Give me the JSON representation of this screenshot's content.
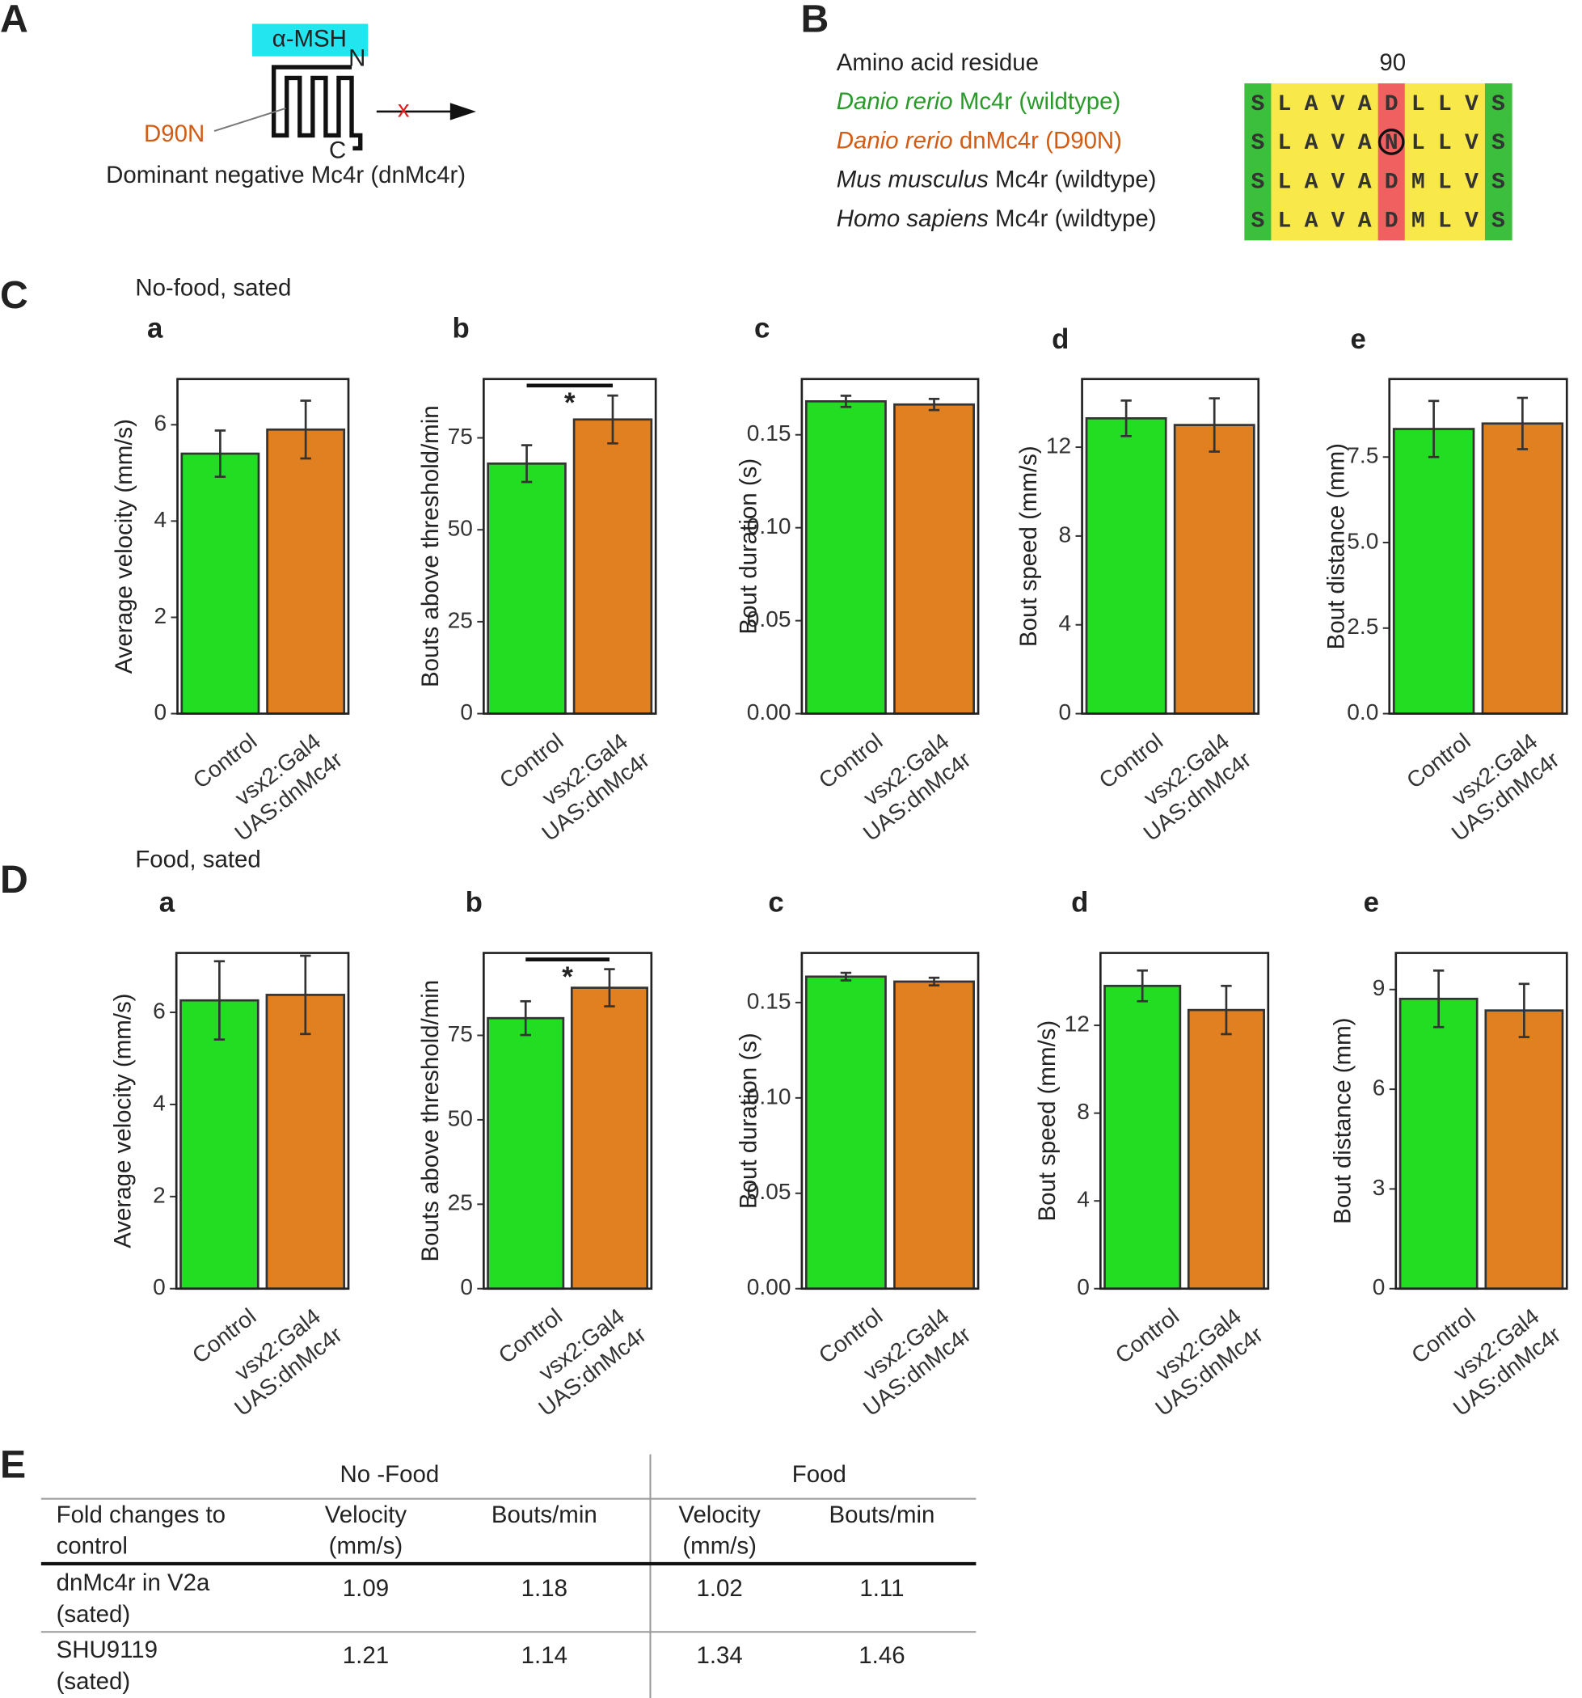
{
  "panel_a": {
    "label": "A",
    "ligand": "α-MSH",
    "n_term": "N",
    "c_term": "C",
    "mutation": "D90N",
    "caption": "Dominant negative Mc4r (dnMc4r)",
    "blocked_mark": "x"
  },
  "panel_b": {
    "label": "B",
    "header": "Amino acid residue",
    "position": "90",
    "rows": [
      {
        "species": "Danio rerio",
        "name": " Mc4r (wildtype)",
        "color": "#2a9a2a",
        "sequence": [
          "S",
          "L",
          "A",
          "V",
          "A",
          "D",
          "L",
          "L",
          "V",
          "S"
        ]
      },
      {
        "species": "Danio rerio",
        "name": " dnMc4r (D90N)",
        "color": "#d25c14",
        "sequence": [
          "S",
          "L",
          "A",
          "V",
          "A",
          "N",
          "L",
          "L",
          "V",
          "S"
        ]
      },
      {
        "species": "Mus musculus",
        "name": " Mc4r (wildtype)",
        "color": "#222222",
        "sequence": [
          "S",
          "L",
          "A",
          "V",
          "A",
          "D",
          "M",
          "L",
          "V",
          "S"
        ]
      },
      {
        "species": "Homo sapiens",
        "name": " Mc4r (wildtype)",
        "color": "#222222",
        "sequence": [
          "S",
          "L",
          "A",
          "V",
          "A",
          "D",
          "M",
          "L",
          "V",
          "S"
        ]
      }
    ]
  },
  "rows": [
    {
      "label": "C",
      "title": "No-food, sated"
    },
    {
      "label": "D",
      "title": "Food, sated"
    }
  ],
  "chart_data": [
    {
      "type": "bar",
      "panel": "a",
      "ylabel": "Average velocity (mm/s)",
      "categories": [
        [
          "Control"
        ],
        [
          "vsx2:Gal4",
          "UAS:dnMc4r"
        ]
      ],
      "values": [
        5.4,
        5.9
      ],
      "errors": [
        0.48,
        0.6
      ],
      "colors": [
        "#22dd22",
        "#e08020"
      ],
      "ylim": [
        0,
        6.95
      ],
      "yticks": [
        0,
        2,
        4,
        6
      ]
    },
    {
      "type": "bar",
      "panel": "b",
      "ylabel": "Bouts above threshold/min",
      "categories": [
        [
          "Control"
        ],
        [
          "vsx2:Gal4",
          "UAS:dnMc4r"
        ]
      ],
      "values": [
        68,
        80
      ],
      "errors": [
        5,
        6.5
      ],
      "colors": [
        "#22dd22",
        "#e08020"
      ],
      "ylim": [
        0,
        91
      ],
      "yticks": [
        0,
        25,
        50,
        75
      ],
      "annotation": "*"
    },
    {
      "type": "bar",
      "panel": "c",
      "ylabel": "Bout duration (s)",
      "categories": [
        [
          "Control"
        ],
        [
          "vsx2:Gal4",
          "UAS:dnMc4r"
        ]
      ],
      "values": [
        0.168,
        0.1663
      ],
      "errors": [
        0.003,
        0.003
      ],
      "colors": [
        "#22dd22",
        "#e08020"
      ],
      "ylim": [
        0,
        0.18
      ],
      "yticks": [
        {
          "value": 0,
          "label": "0.00"
        },
        0.05,
        {
          "value": 0.1,
          "label": "0.10"
        },
        0.15
      ]
    },
    {
      "type": "bar",
      "panel": "d",
      "ylabel": "Bout speed (mm/s)",
      "categories": [
        [
          "Control"
        ],
        [
          "vsx2:Gal4",
          "UAS:dnMc4r"
        ]
      ],
      "values": [
        13.3,
        13.0
      ],
      "errors": [
        0.8,
        1.2
      ],
      "colors": [
        "#22dd22",
        "#e08020"
      ],
      "ylim": [
        0,
        15.07
      ],
      "yticks": [
        0,
        4,
        8,
        12
      ]
    },
    {
      "type": "bar",
      "panel": "e",
      "ylabel": "Bout distance (mm)",
      "categories": [
        [
          "Control"
        ],
        [
          "vsx2:Gal4",
          "UAS:dnMc4r"
        ]
      ],
      "values": [
        8.32,
        8.48
      ],
      "errors": [
        0.82,
        0.75
      ],
      "colors": [
        "#22dd22",
        "#e08020"
      ],
      "ylim": [
        0,
        9.78
      ],
      "yticks": [
        {
          "value": 0,
          "label": "0.0"
        },
        2.5,
        {
          "value": 5,
          "label": "5.0"
        },
        7.5
      ]
    },
    {
      "type": "bar",
      "panel": "a",
      "ylabel": "Average velocity (mm/s)",
      "categories": [
        [
          "Control"
        ],
        [
          "vsx2:Gal4",
          "UAS:dnMc4r"
        ]
      ],
      "values": [
        6.26,
        6.38
      ],
      "errors": [
        0.85,
        0.85
      ],
      "colors": [
        "#22dd22",
        "#e08020"
      ],
      "ylim": [
        0,
        7.29
      ],
      "yticks": [
        0,
        2,
        4,
        6
      ]
    },
    {
      "type": "bar",
      "panel": "b",
      "ylabel": "Bouts above threshold/min",
      "categories": [
        [
          "Control"
        ],
        [
          "vsx2:Gal4",
          "UAS:dnMc4r"
        ]
      ],
      "values": [
        80.1,
        89.1
      ],
      "errors": [
        5,
        5.5
      ],
      "colors": [
        "#22dd22",
        "#e08020"
      ],
      "ylim": [
        0,
        99.4
      ],
      "yticks": [
        0,
        25,
        50,
        75
      ],
      "annotation": "*"
    },
    {
      "type": "bar",
      "panel": "c",
      "ylabel": "Bout duration (s)",
      "categories": [
        [
          "Control"
        ],
        [
          "vsx2:Gal4",
          "UAS:dnMc4r"
        ]
      ],
      "values": [
        0.1636,
        0.161
      ],
      "errors": [
        0.002,
        0.002
      ],
      "colors": [
        "#22dd22",
        "#e08020"
      ],
      "ylim": [
        0,
        0.176
      ],
      "yticks": [
        {
          "value": 0,
          "label": "0.00"
        },
        0.05,
        {
          "value": 0.1,
          "label": "0.10"
        },
        0.15
      ]
    },
    {
      "type": "bar",
      "panel": "d",
      "ylabel": "Bout speed (mm/s)",
      "categories": [
        [
          "Control"
        ],
        [
          "vsx2:Gal4",
          "UAS:dnMc4r"
        ]
      ],
      "values": [
        13.8,
        12.7
      ],
      "errors": [
        0.7,
        1.1
      ],
      "colors": [
        "#22dd22",
        "#e08020"
      ],
      "ylim": [
        0,
        15.3
      ],
      "yticks": [
        0,
        4,
        8,
        12
      ]
    },
    {
      "type": "bar",
      "panel": "e",
      "ylabel": "Bout distance (mm)",
      "categories": [
        [
          "Control"
        ],
        [
          "vsx2:Gal4",
          "UAS:dnMc4r"
        ]
      ],
      "values": [
        8.72,
        8.37
      ],
      "errors": [
        0.85,
        0.8
      ],
      "colors": [
        "#22dd22",
        "#e08020"
      ],
      "ylim": [
        0,
        10.1
      ],
      "yticks": [
        0,
        3,
        6,
        9
      ]
    }
  ],
  "table": {
    "label": "E",
    "groups": [
      "No -Food",
      "Food"
    ],
    "columns": [
      [
        "Fold changes to",
        "control"
      ],
      [
        "Velocity",
        "(mm/s)"
      ],
      [
        "Bouts/min"
      ],
      [
        "Velocity",
        "(mm/s)"
      ],
      [
        "Bouts/min"
      ]
    ],
    "rows": [
      [
        [
          "dnMc4r in V2a",
          "(sated)"
        ],
        1.09,
        1.18,
        1.02,
        1.11
      ],
      [
        [
          "SHU9119",
          "(sated)"
        ],
        1.21,
        1.14,
        1.34,
        1.46
      ]
    ]
  }
}
